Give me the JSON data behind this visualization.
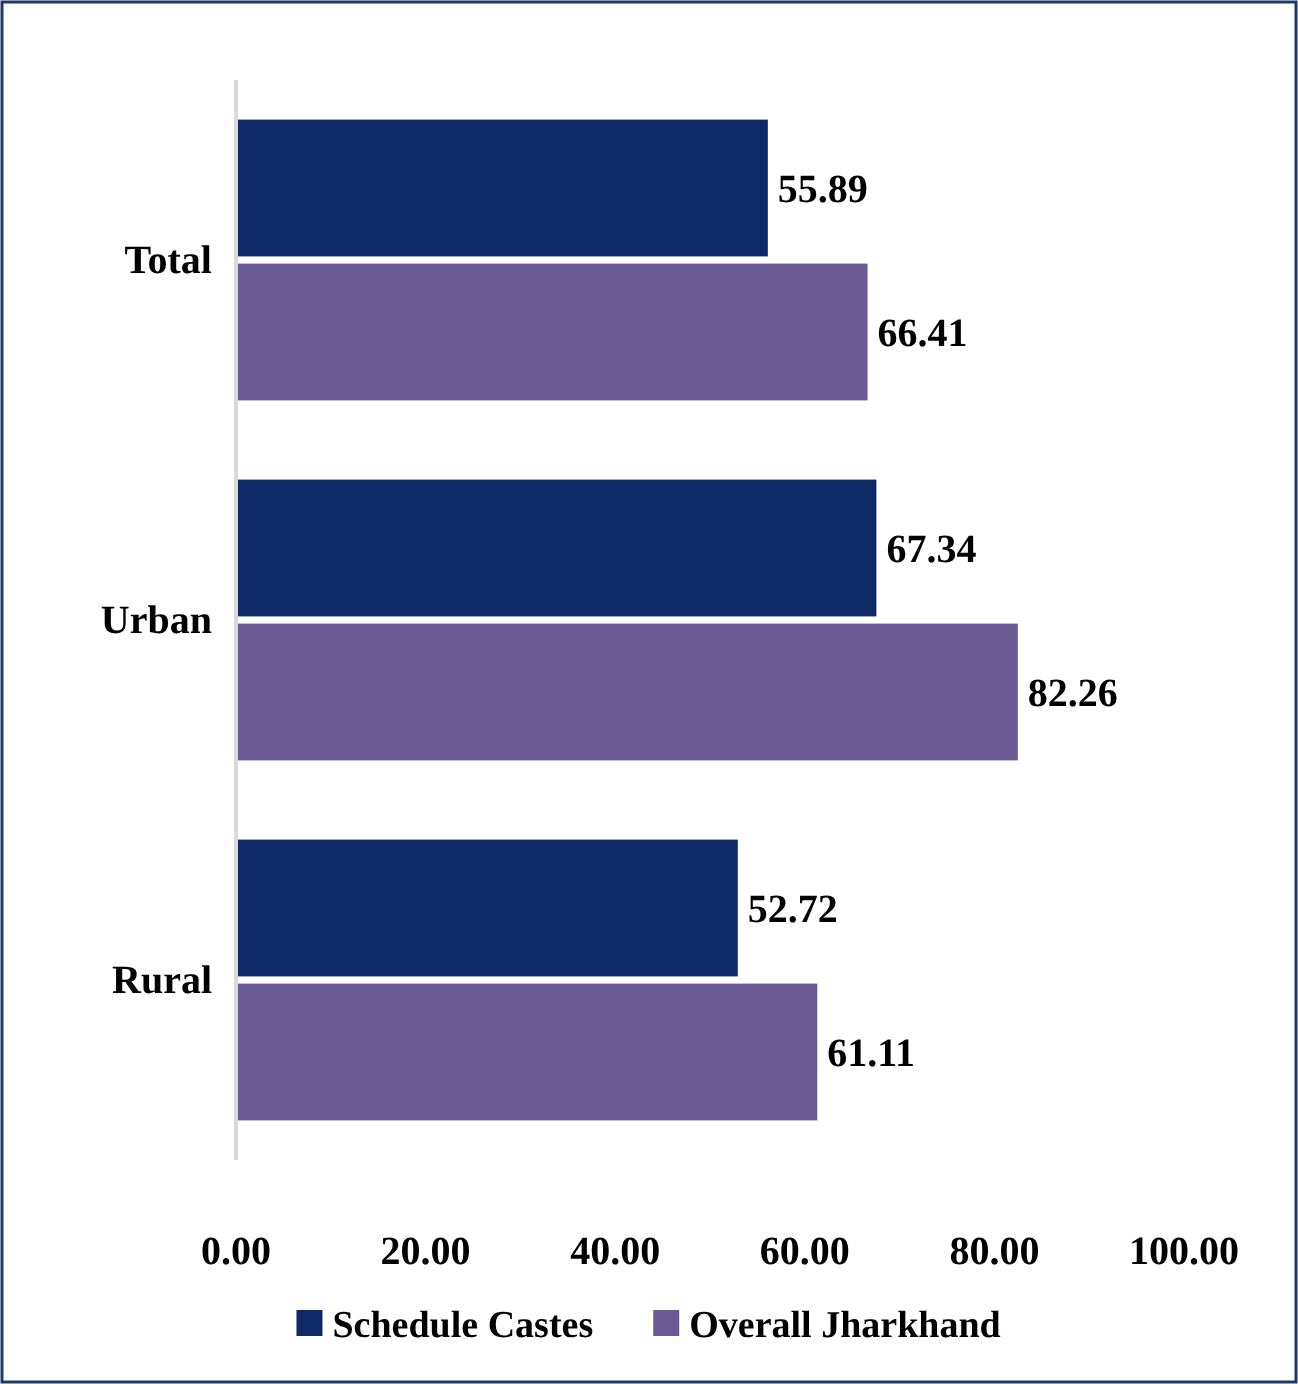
{
  "chart_data": {
    "type": "bar",
    "orientation": "horizontal",
    "categories": [
      "Total",
      "Urban",
      "Rural"
    ],
    "series": [
      {
        "name": "Schedule Castes",
        "color": "#0e2a66",
        "values": [
          55.89,
          67.34,
          52.72
        ]
      },
      {
        "name": "Overall Jharkhand",
        "color": "#6b5b95",
        "values": [
          66.41,
          82.26,
          61.11
        ]
      }
    ],
    "xlim": [
      0,
      100
    ],
    "xticks": [
      {
        "value": 0,
        "label": "0.00"
      },
      {
        "value": 20,
        "label": "20.00"
      },
      {
        "value": 40,
        "label": "40.00"
      },
      {
        "value": 60,
        "label": "60.00"
      },
      {
        "value": 80,
        "label": "80.00"
      },
      {
        "value": 100,
        "label": "100.00"
      }
    ],
    "data_labels": true,
    "legend": "bottom",
    "grid": false
  }
}
